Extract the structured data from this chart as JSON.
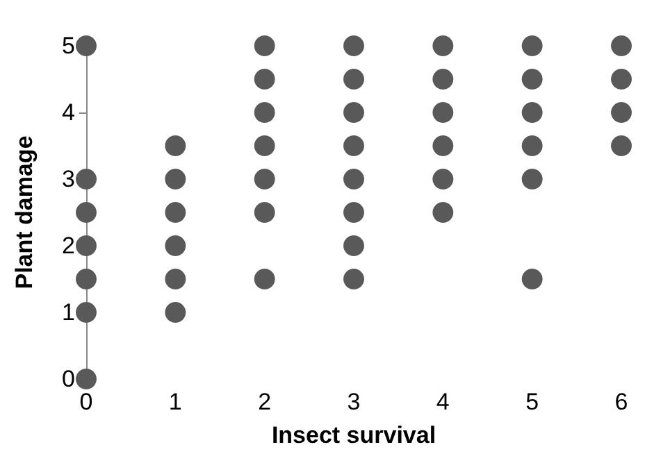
{
  "chart_data": {
    "type": "scatter",
    "xlabel": "Insect survival",
    "ylabel": "Plant damage",
    "series": [
      {
        "color": "#595959",
        "x": [
          0,
          0,
          0,
          0,
          0,
          0,
          0,
          1,
          1,
          1,
          1,
          1,
          1,
          2,
          2,
          2,
          2,
          2,
          2,
          2,
          3,
          3,
          3,
          3,
          3,
          3,
          3,
          3,
          4,
          4,
          4,
          4,
          4,
          4,
          5,
          5,
          5,
          5,
          5,
          5,
          6,
          6,
          6,
          6
        ],
        "values": [
          0,
          1,
          1.5,
          2,
          2.5,
          3,
          5,
          1,
          1.5,
          2,
          2.5,
          3,
          3.5,
          1.5,
          2.5,
          3,
          3.5,
          4,
          4.5,
          5,
          1.5,
          2,
          2.5,
          3,
          3.5,
          4,
          4.5,
          5,
          2.5,
          3,
          3.5,
          4,
          4.5,
          5,
          1.5,
          3,
          3.5,
          4,
          4.5,
          5,
          3.5,
          4,
          4.5,
          5
        ]
      }
    ],
    "xlim": [
      0,
      6
    ],
    "xticks": [
      0,
      1,
      2,
      3,
      4,
      5,
      6
    ],
    "ylim": [
      0,
      5
    ],
    "yticks": [
      0,
      1,
      2,
      3,
      4,
      5
    ],
    "grid": false,
    "marker": "circle"
  }
}
